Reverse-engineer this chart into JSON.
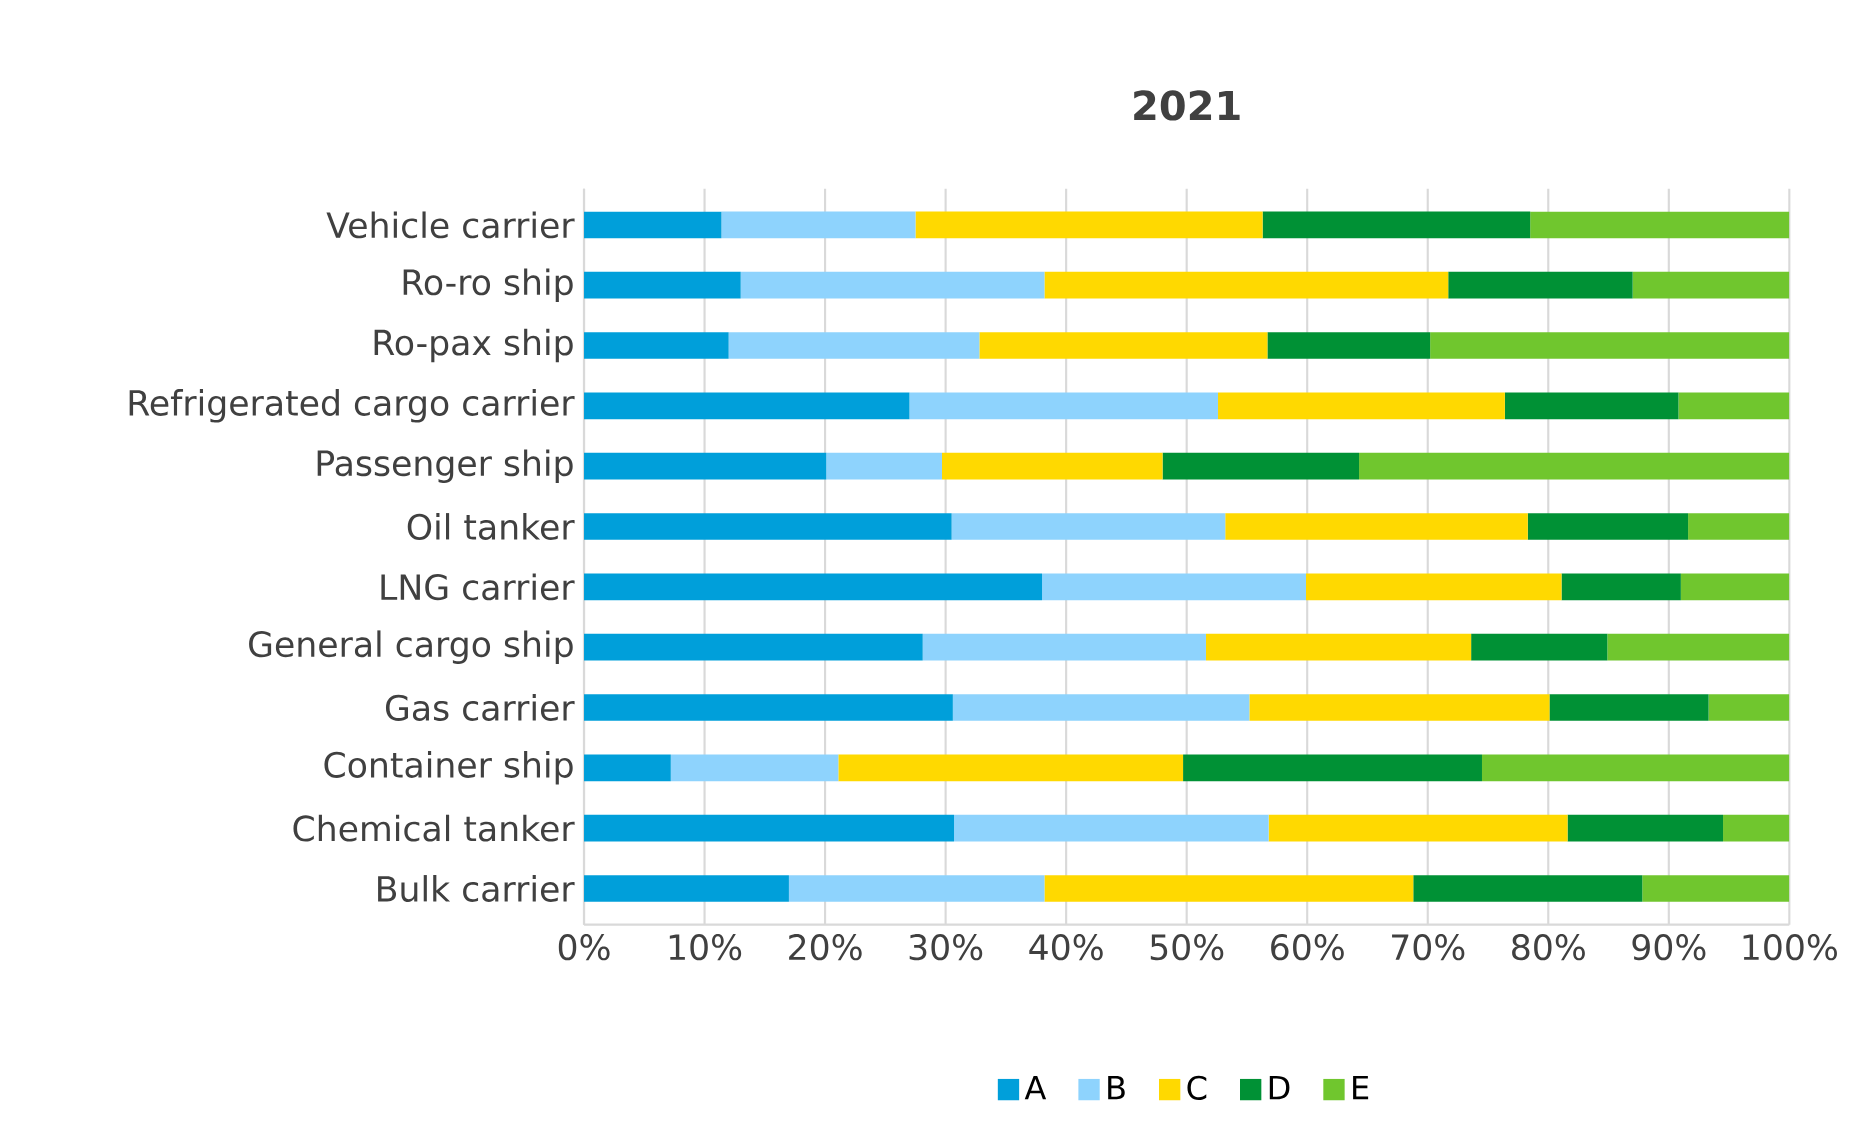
{
  "chart_data": {
    "type": "bar",
    "orientation": "horizontal",
    "stacked": true,
    "title": "2021",
    "categories": [
      "Vehicle carrier",
      "Ro-ro ship",
      "Ro-pax ship",
      "Refrigerated cargo carrier",
      "Passenger ship",
      "Oil tanker",
      "LNG carrier",
      "General cargo ship",
      "Gas carrier",
      "Container ship",
      "Chemical tanker",
      "Bulk carrier"
    ],
    "series": [
      {
        "name": "A",
        "color": "#009fda",
        "values": [
          11.4,
          13.0,
          12.0,
          27.0,
          20.1,
          30.5,
          38.0,
          28.1,
          30.6,
          7.2,
          30.7,
          17.0
        ]
      },
      {
        "name": "B",
        "color": "#8ed3fd",
        "values": [
          16.1,
          25.2,
          20.8,
          25.6,
          9.6,
          22.7,
          21.9,
          23.5,
          24.6,
          13.9,
          26.1,
          21.2
        ]
      },
      {
        "name": "C",
        "color": "#ffd900",
        "values": [
          28.8,
          33.5,
          23.9,
          23.8,
          18.3,
          25.1,
          21.2,
          22.0,
          24.9,
          28.6,
          24.8,
          30.6
        ]
      },
      {
        "name": "D",
        "color": "#009135",
        "values": [
          22.2,
          15.3,
          13.5,
          14.4,
          16.3,
          13.3,
          9.9,
          11.3,
          13.2,
          24.8,
          12.9,
          19.0
        ]
      },
      {
        "name": "E",
        "color": "#70c62e",
        "values": [
          21.5,
          13.0,
          29.8,
          9.2,
          35.7,
          8.4,
          9.0,
          15.1,
          6.7,
          25.5,
          5.5,
          12.2
        ]
      }
    ],
    "xlim": [
      0,
      100
    ],
    "xticks": [
      {
        "value": 0,
        "label": "0%"
      },
      {
        "value": 10,
        "label": "10%"
      },
      {
        "value": 20,
        "label": "20%"
      },
      {
        "value": 30,
        "label": "30%"
      },
      {
        "value": 40,
        "label": "40%"
      },
      {
        "value": 50,
        "label": "50%"
      },
      {
        "value": 60,
        "label": "60%"
      },
      {
        "value": 70,
        "label": "70%"
      },
      {
        "value": 80,
        "label": "80%"
      },
      {
        "value": 90,
        "label": "90%"
      },
      {
        "value": 100,
        "label": "100%"
      }
    ],
    "grid": "x",
    "legend": "bottom"
  }
}
